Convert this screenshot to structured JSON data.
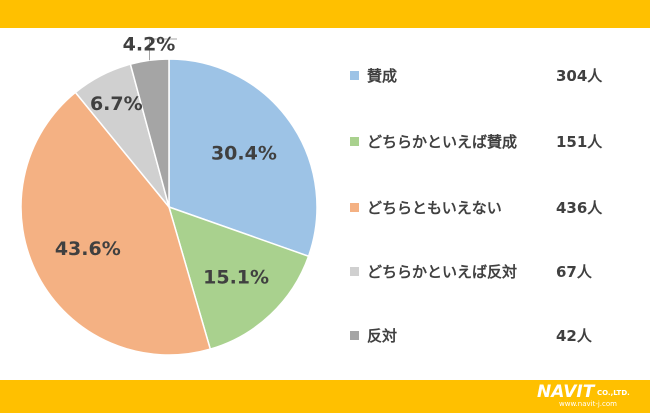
{
  "brand": {
    "logo_text": "NAVIT",
    "company_suffix": "CO.,LTD.",
    "url": "www.navit-j.com"
  },
  "colors": {
    "band": "#ffc000",
    "label_text": "#404040"
  },
  "chart_data": {
    "type": "pie",
    "title": "",
    "categories": [
      "賛成",
      "どちらかといえば賛成",
      "どちらともいえない",
      "どちらかといえば反対",
      "反対"
    ],
    "values": [
      304,
      151,
      436,
      67,
      42
    ],
    "percent_labels": [
      "30.4%",
      "15.1%",
      "43.6%",
      "6.7%",
      "4.2%"
    ],
    "value_labels": [
      "304人",
      "151人",
      "436人",
      "67人",
      "42人"
    ],
    "colors": [
      "#9dc3e6",
      "#a9d18e",
      "#f4b183",
      "#d0d0d0",
      "#a5a5a5"
    ],
    "legend_position": "right",
    "start_angle": "top, clockwise"
  }
}
